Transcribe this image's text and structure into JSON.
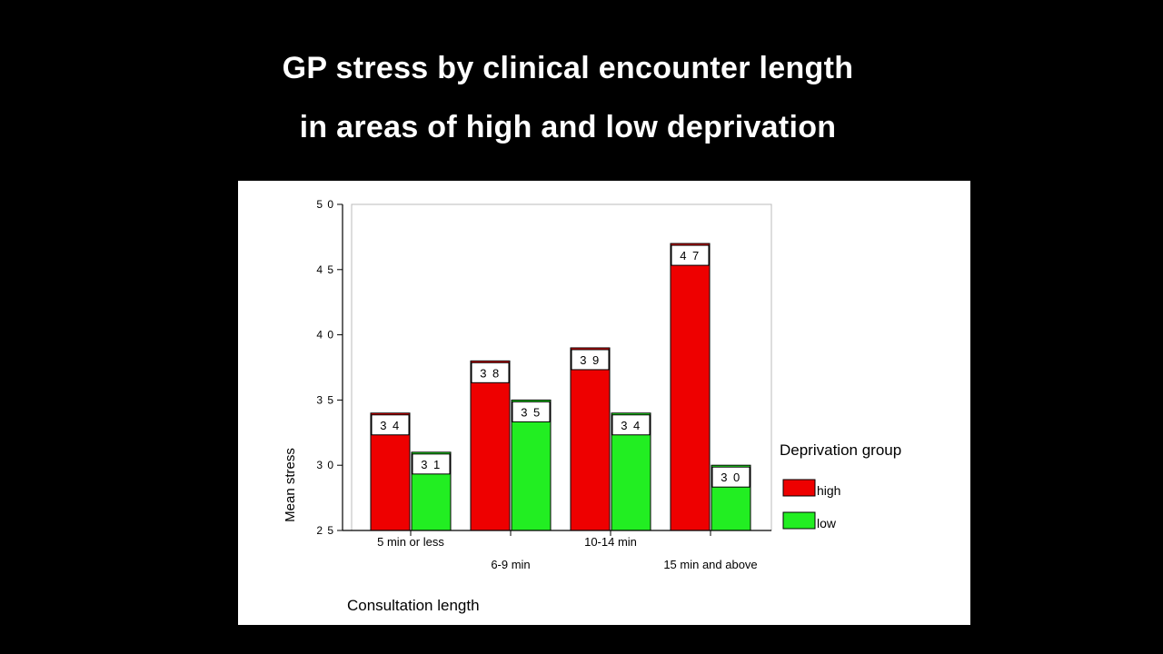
{
  "slide": {
    "title_line1": "GP stress by clinical encounter length",
    "title_line2": "in areas of high and low deprivation"
  },
  "chart_data": {
    "type": "bar",
    "categories": [
      "5 min or less",
      "6-9 min",
      "10-14 min",
      "15 min and above"
    ],
    "series": [
      {
        "name": "high",
        "color": "#ee0000",
        "values": [
          3.4,
          3.8,
          3.9,
          4.7
        ],
        "labels": [
          "3 4",
          "3 8",
          "3 9",
          "4 7"
        ]
      },
      {
        "name": "low",
        "color": "#22ee22",
        "values": [
          3.1,
          3.5,
          3.4,
          3.0
        ],
        "labels": [
          "3 1",
          "3 5",
          "3 4",
          "3 0"
        ]
      }
    ],
    "xlabel": "Consultation length",
    "ylabel": "Mean stress",
    "ylim": [
      2.5,
      5.0
    ],
    "yticks": [
      2.5,
      3.0,
      3.5,
      4.0,
      4.5,
      5.0
    ],
    "ytick_labels": [
      "2 5",
      "3 0",
      "3 5",
      "4 0",
      "4 5",
      "5 0"
    ],
    "legend_title": "Deprivation group",
    "legend_position": "right",
    "grid": false
  }
}
